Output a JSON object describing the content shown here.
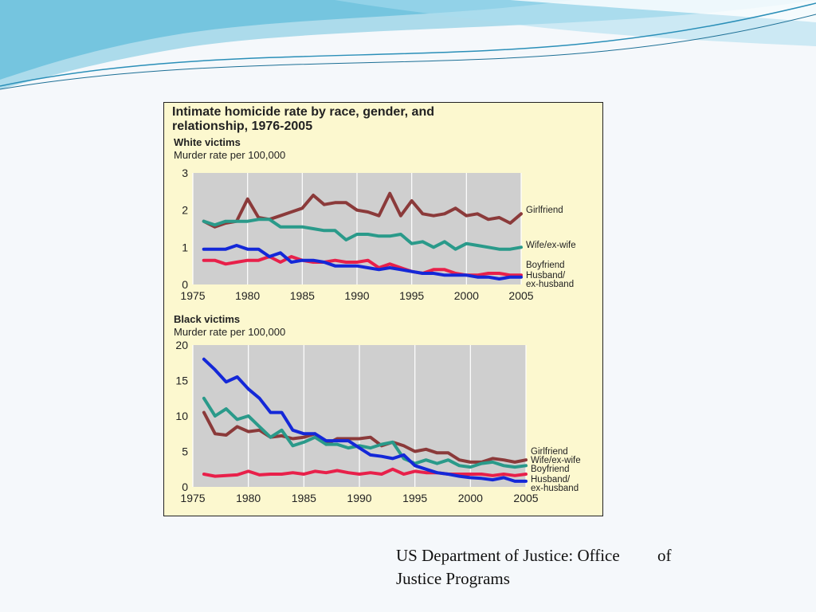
{
  "caption": {
    "line1": "US Department of Justice: Office         of",
    "line2": "Justice Programs"
  },
  "figure": {
    "title_line1": "Intimate homicide rate by race, gender, and",
    "title_line2": "relationship, 1976-2005"
  },
  "colors": {
    "girlfriend": "#8b3a3a",
    "wife_ex_wife": "#2a9a8a",
    "boyfriend": "#e8204a",
    "husband_ex_husband": "#1428d8",
    "plot_background": "#cfcfcf",
    "figure_background": "#fcf8cf"
  },
  "chart_data": [
    {
      "type": "line",
      "title": "White victims",
      "ylabel": "Murder rate per 100,000",
      "ylim": [
        0,
        3
      ],
      "yticks": [
        "0",
        "1",
        "2",
        "3"
      ],
      "xlim": [
        1975,
        2005
      ],
      "xticks": [
        "1975",
        "1980",
        "1985",
        "1990",
        "1995",
        "2000",
        "2005"
      ],
      "grid": true,
      "legend": "right-end labels",
      "x": [
        1976,
        1977,
        1978,
        1979,
        1980,
        1981,
        1982,
        1983,
        1984,
        1985,
        1986,
        1987,
        1988,
        1989,
        1990,
        1991,
        1992,
        1993,
        1994,
        1995,
        1996,
        1997,
        1998,
        1999,
        2000,
        2001,
        2002,
        2003,
        2004,
        2005
      ],
      "series": [
        {
          "name": "Girlfriend",
          "color_key": "girlfriend",
          "label_lines": [
            "Girlfriend"
          ],
          "values": [
            1.7,
            1.55,
            1.65,
            1.7,
            2.3,
            1.8,
            1.75,
            1.85,
            1.95,
            2.05,
            2.4,
            2.15,
            2.2,
            2.2,
            2.0,
            1.95,
            1.85,
            2.45,
            1.85,
            2.25,
            1.9,
            1.85,
            1.9,
            2.05,
            1.85,
            1.9,
            1.75,
            1.8,
            1.65,
            1.9
          ]
        },
        {
          "name": "Wife/ex-wife",
          "color_key": "wife_ex_wife",
          "label_lines": [
            "Wife/ex-wife"
          ],
          "values": [
            1.7,
            1.6,
            1.7,
            1.7,
            1.7,
            1.75,
            1.75,
            1.55,
            1.55,
            1.55,
            1.5,
            1.45,
            1.45,
            1.2,
            1.35,
            1.35,
            1.3,
            1.3,
            1.35,
            1.1,
            1.15,
            1.0,
            1.15,
            0.95,
            1.1,
            1.05,
            1.0,
            0.95,
            0.95,
            1.0
          ]
        },
        {
          "name": "Boyfriend",
          "color_key": "boyfriend",
          "label_lines": [
            "Boyfriend"
          ],
          "values": [
            0.65,
            0.65,
            0.55,
            0.6,
            0.65,
            0.65,
            0.75,
            0.6,
            0.75,
            0.65,
            0.6,
            0.6,
            0.65,
            0.6,
            0.6,
            0.65,
            0.45,
            0.55,
            0.45,
            0.35,
            0.3,
            0.4,
            0.4,
            0.3,
            0.25,
            0.25,
            0.3,
            0.3,
            0.25,
            0.25
          ]
        },
        {
          "name": "Husband/ex-husband",
          "color_key": "husband_ex_husband",
          "label_lines": [
            "Husband/",
            "ex-husband"
          ],
          "values": [
            0.95,
            0.95,
            0.95,
            1.05,
            0.95,
            0.95,
            0.75,
            0.85,
            0.6,
            0.65,
            0.65,
            0.6,
            0.5,
            0.5,
            0.5,
            0.45,
            0.4,
            0.45,
            0.4,
            0.35,
            0.3,
            0.3,
            0.25,
            0.25,
            0.25,
            0.2,
            0.2,
            0.15,
            0.2,
            0.2
          ]
        }
      ]
    },
    {
      "type": "line",
      "title": "Black victims",
      "ylabel": "Murder rate per 100,000",
      "ylim": [
        0,
        20
      ],
      "yticks": [
        "0",
        "5",
        "10",
        "15",
        "20"
      ],
      "xlim": [
        1975,
        2005
      ],
      "xticks": [
        "1975",
        "1980",
        "1985",
        "1990",
        "1995",
        "2000",
        "2005"
      ],
      "grid": true,
      "legend": "right-end labels",
      "x": [
        1976,
        1977,
        1978,
        1979,
        1980,
        1981,
        1982,
        1983,
        1984,
        1985,
        1986,
        1987,
        1988,
        1989,
        1990,
        1991,
        1992,
        1993,
        1994,
        1995,
        1996,
        1997,
        1998,
        1999,
        2000,
        2001,
        2002,
        2003,
        2004,
        2005
      ],
      "series": [
        {
          "name": "Girlfriend",
          "color_key": "girlfriend",
          "label_lines": [
            "Girlfriend"
          ],
          "values": [
            10.5,
            7.5,
            7.3,
            8.5,
            7.8,
            8.0,
            7.0,
            7.2,
            6.8,
            7.0,
            7.5,
            6.0,
            6.8,
            6.8,
            6.8,
            7.0,
            5.8,
            6.3,
            5.8,
            5.0,
            5.3,
            4.8,
            4.8,
            3.8,
            3.5,
            3.5,
            4.0,
            3.8,
            3.5,
            3.8
          ]
        },
        {
          "name": "Wife/ex-wife",
          "color_key": "wife_ex_wife",
          "label_lines": [
            "Wife/ex-wife"
          ],
          "values": [
            12.5,
            10.0,
            11.0,
            9.5,
            10.0,
            8.5,
            7.0,
            8.0,
            5.8,
            6.3,
            7.0,
            6.0,
            6.0,
            5.5,
            5.8,
            5.5,
            6.0,
            6.3,
            4.0,
            3.3,
            3.8,
            3.3,
            3.8,
            3.0,
            2.8,
            3.3,
            3.5,
            3.0,
            2.8,
            3.0
          ]
        },
        {
          "name": "Boyfriend",
          "color_key": "boyfriend",
          "label_lines": [
            "Boyfriend"
          ],
          "values": [
            1.8,
            1.5,
            1.6,
            1.7,
            2.2,
            1.7,
            1.8,
            1.8,
            2.0,
            1.8,
            2.2,
            2.0,
            2.3,
            2.0,
            1.8,
            2.0,
            1.8,
            2.5,
            1.8,
            2.2,
            2.0,
            2.0,
            1.8,
            1.8,
            1.8,
            1.8,
            1.6,
            1.8,
            1.6,
            1.8
          ]
        },
        {
          "name": "Husband/ex-husband",
          "color_key": "husband_ex_husband",
          "label_lines": [
            "Husband/",
            "ex-husband"
          ],
          "values": [
            18.0,
            16.5,
            14.8,
            15.5,
            13.8,
            12.5,
            10.5,
            10.5,
            8.0,
            7.5,
            7.5,
            6.5,
            6.5,
            6.5,
            5.5,
            4.5,
            4.3,
            4.0,
            4.5,
            3.0,
            2.5,
            2.0,
            1.8,
            1.5,
            1.3,
            1.2,
            1.0,
            1.3,
            0.8,
            0.8
          ]
        }
      ]
    }
  ]
}
